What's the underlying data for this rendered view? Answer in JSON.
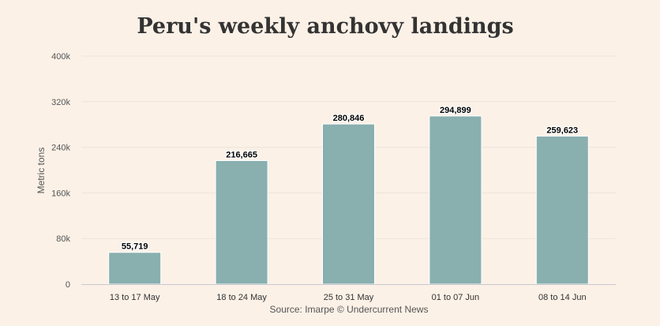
{
  "chart_data": {
    "type": "bar",
    "title": "Peru's weekly anchovy landings",
    "xlabel": "",
    "ylabel": "Metric tons",
    "categories": [
      "13 to 17 May",
      "18 to 24 May",
      "25 to 31 May",
      "01 to 07 Jun",
      "08 to 14 Jun"
    ],
    "values": [
      55719,
      216665,
      280846,
      294899,
      259623
    ],
    "data_labels": [
      "55,719",
      "216,665",
      "280,846",
      "294,899",
      "259,623"
    ],
    "yticks": [
      0,
      80000,
      160000,
      240000,
      320000,
      400000
    ],
    "ytick_labels": [
      "0",
      "80k",
      "160k",
      "240k",
      "320k",
      "400k"
    ],
    "ylim": [
      0,
      400000
    ],
    "grid": true,
    "bar_color": "#89afaf",
    "source": "Source: Imarpe © Undercurrent News"
  }
}
